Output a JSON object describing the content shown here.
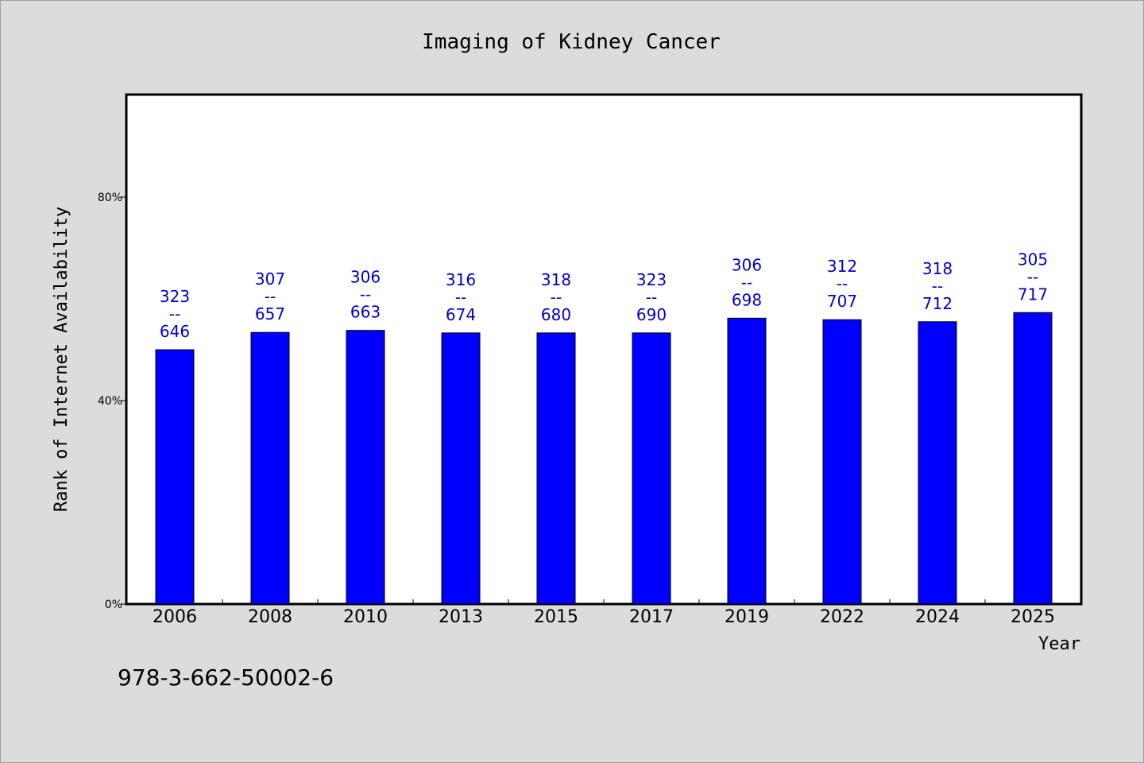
{
  "chart_data": {
    "type": "bar",
    "title": "Imaging of Kidney Cancer",
    "xlabel": "Year",
    "ylabel": "Rank of Internet Availability",
    "categories": [
      "2006",
      "2008",
      "2010",
      "2013",
      "2015",
      "2017",
      "2019",
      "2022",
      "2024",
      "2025"
    ],
    "values": [
      50.0,
      53.4,
      53.8,
      53.3,
      53.3,
      53.3,
      56.2,
      55.9,
      55.5,
      57.3
    ],
    "data_labels": [
      [
        "323",
        "--",
        "646"
      ],
      [
        "307",
        "--",
        "657"
      ],
      [
        "306",
        "--",
        "663"
      ],
      [
        "316",
        "--",
        "674"
      ],
      [
        "318",
        "--",
        "680"
      ],
      [
        "323",
        "--",
        "690"
      ],
      [
        "306",
        "--",
        "698"
      ],
      [
        "312",
        "--",
        "707"
      ],
      [
        "318",
        "--",
        "712"
      ],
      [
        "305",
        "--",
        "717"
      ]
    ],
    "yticks": [
      0,
      40,
      80
    ],
    "ytick_labels": [
      "0%",
      "40%",
      "80%"
    ],
    "ylim": [
      0,
      100
    ],
    "grid": false,
    "legend": "none",
    "bar_color": "#0000ff",
    "label_color": "#0000cc"
  },
  "footer": {
    "isbn": "978-3-662-50002-6"
  }
}
